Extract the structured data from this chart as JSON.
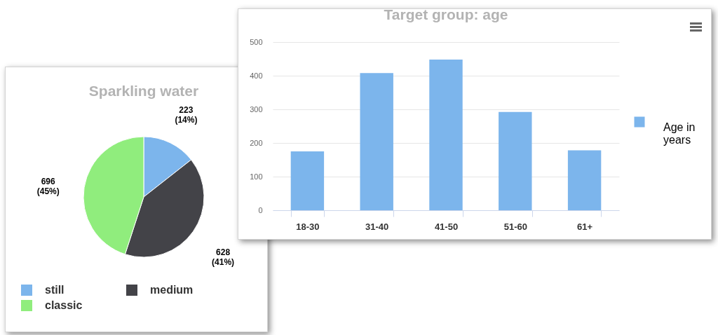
{
  "chart_data": [
    {
      "type": "pie",
      "title": "Sparkling water",
      "categories": [
        "still",
        "medium",
        "classic"
      ],
      "values": [
        223,
        628,
        696
      ],
      "colors": [
        "#7cb5ec",
        "#434348",
        "#90ed7d"
      ],
      "value_labels": [
        "223 (14%)",
        "628 (41%)",
        "696 (45%)"
      ],
      "legend": "bottom"
    },
    {
      "type": "bar",
      "title": "Target group: age",
      "categories": [
        "18-30",
        "31-40",
        "41-50",
        "51-60",
        "61+"
      ],
      "series": [
        {
          "name": "Age in years",
          "color": "#7cb5ec",
          "values": [
            175,
            408,
            448,
            292,
            178
          ]
        }
      ],
      "ylim": [
        0,
        500
      ],
      "yticks": [
        0,
        100,
        200,
        300,
        400,
        500
      ],
      "grid": "y",
      "legend": "right"
    }
  ]
}
